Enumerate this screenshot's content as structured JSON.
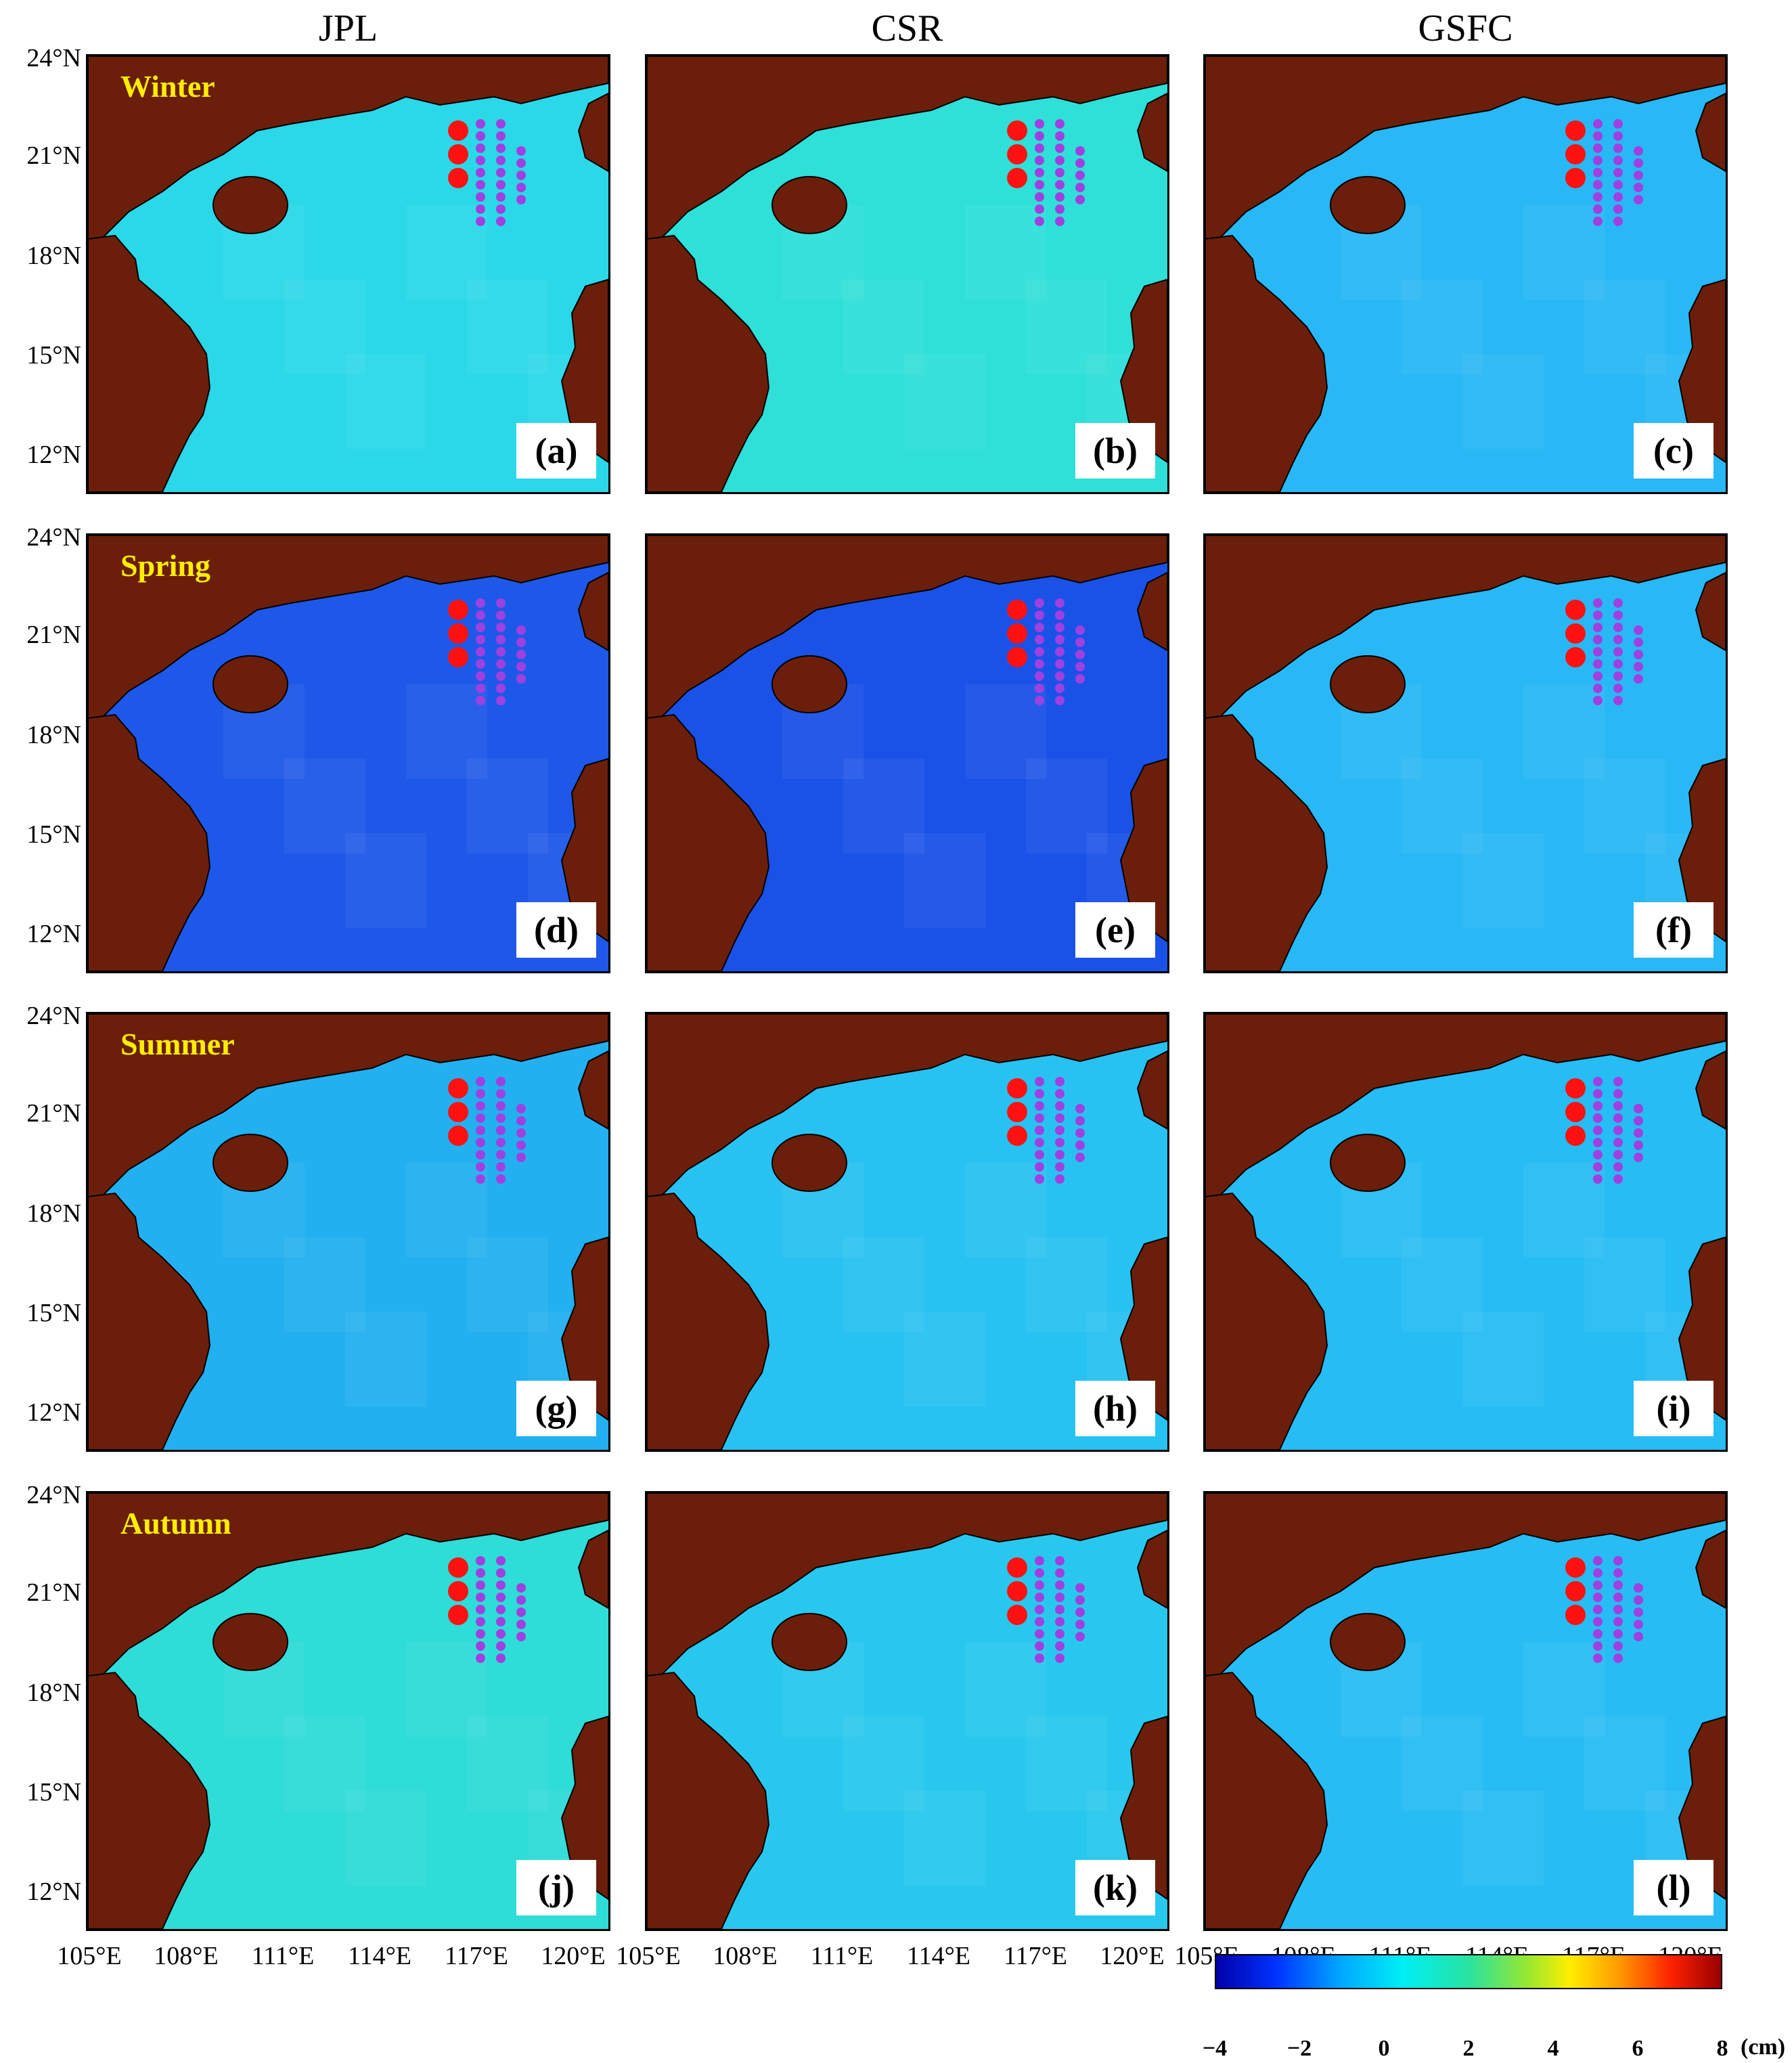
{
  "columns": [
    "JPL",
    "CSR",
    "GSFC"
  ],
  "rows": [
    {
      "season": "Winter",
      "labels": [
        "(a)",
        "(b)",
        "(c)"
      ]
    },
    {
      "season": "Spring",
      "labels": [
        "(d)",
        "(e)",
        "(f)"
      ]
    },
    {
      "season": "Summer",
      "labels": [
        "(g)",
        "(h)",
        "(i)"
      ]
    },
    {
      "season": "Autumn",
      "labels": [
        "(j)",
        "(k)",
        "(l)"
      ]
    }
  ],
  "lat_ticks": [
    "24°N",
    "21°N",
    "18°N",
    "15°N",
    "12°N"
  ],
  "lon_ticks": [
    "105°E",
    "108°E",
    "111°E",
    "114°E",
    "117°E",
    "120°E"
  ],
  "colorbar": {
    "ticks": [
      "−4",
      "−2",
      "0",
      "2",
      "4",
      "6",
      "8"
    ],
    "unit": "(cm)",
    "range": [
      -4,
      8
    ],
    "colors": [
      "#0000aa",
      "#0033ff",
      "#00aaff",
      "#00eef5",
      "#28e2a0",
      "#9be82e",
      "#ffee00",
      "#ff9900",
      "#ff2200",
      "#990000"
    ]
  },
  "colors": {
    "land": "#6b1f0a",
    "station_large": "#ff1111",
    "station_small": "#a040e0",
    "season_label": "#ffee00"
  },
  "panel_fill": [
    [
      "#2ad8e8",
      "#2ee0d8",
      "#28b8f5"
    ],
    [
      "#1e58e8",
      "#1a52e8",
      "#28b8f5"
    ],
    [
      "#22b0f0",
      "#28c2f2",
      "#26bcf4"
    ],
    [
      "#2edcd8",
      "#28c8ee",
      "#28bcf4"
    ]
  ]
}
